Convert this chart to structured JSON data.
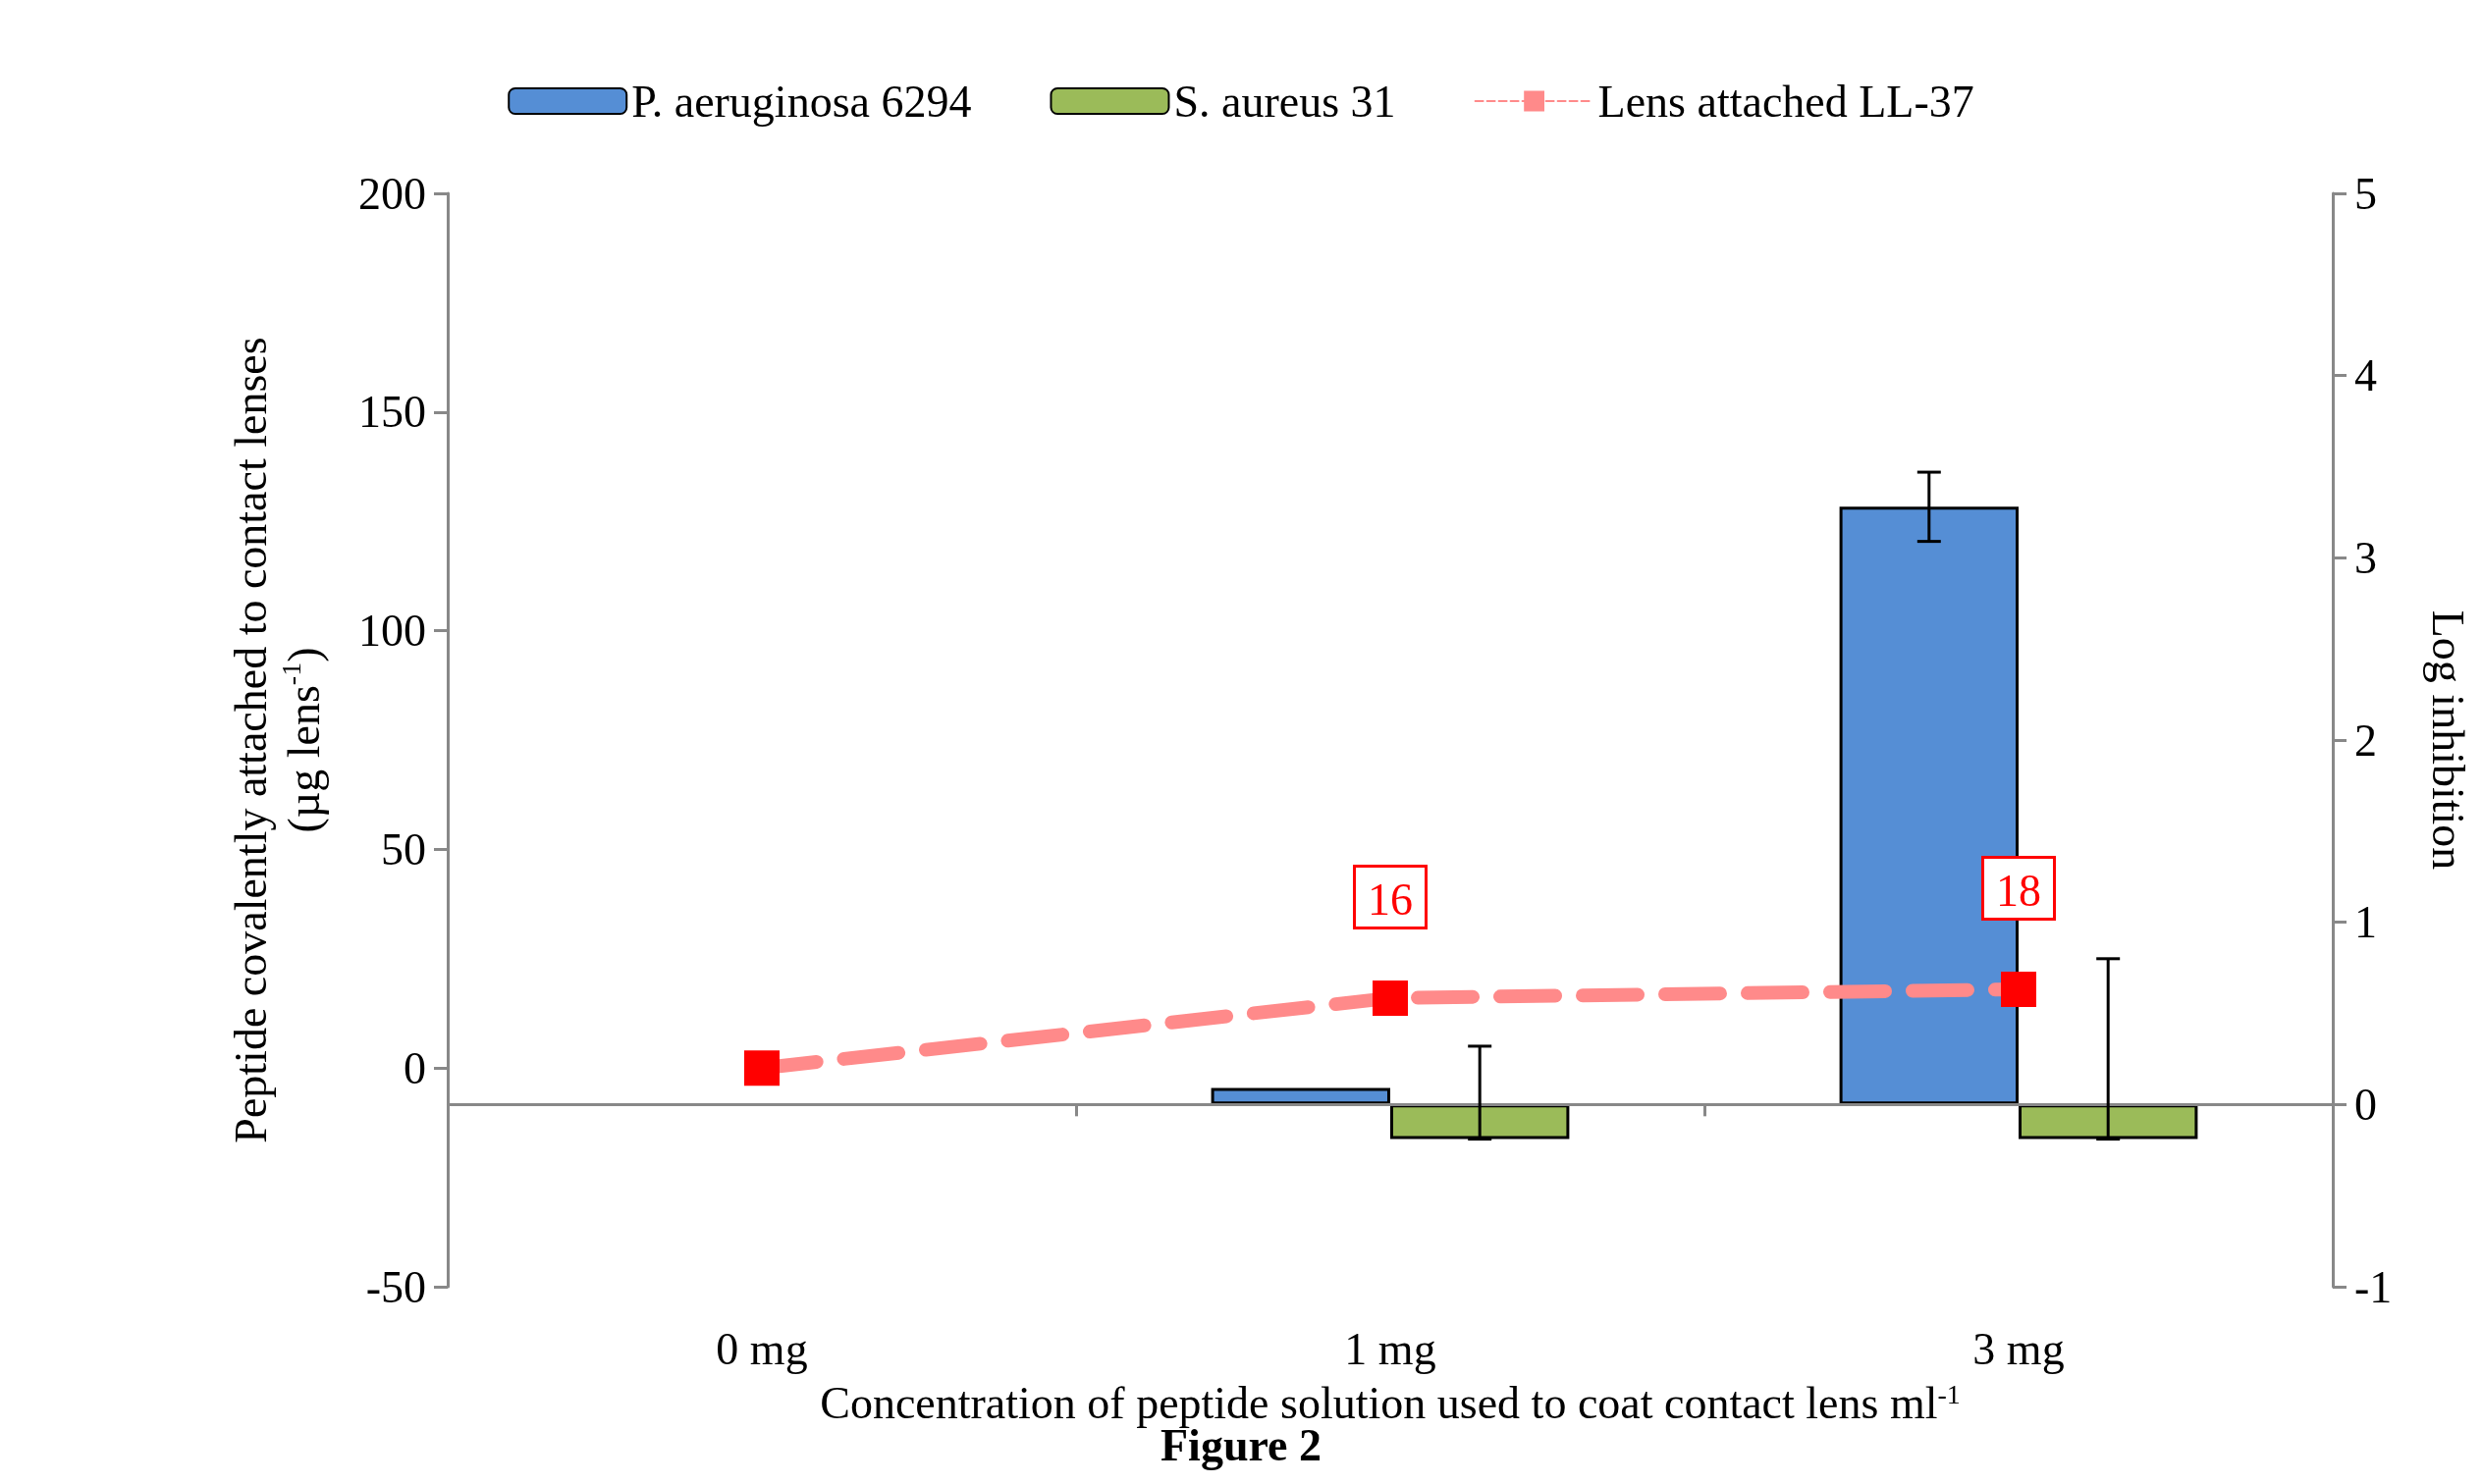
{
  "chart_data": {
    "type": "bar",
    "xlabel": "Concentration of peptide solution used to coat contact lens ml$^{-1}$",
    "ylabel": "Peptide covalently attached to contact lenses\n(µg lens$^{-1}$)",
    "y2label": "Log inhibition",
    "annotations": [
      "Figure 2"
    ],
    "categories": [
      "0 mg",
      "1 mg",
      "3 mg"
    ],
    "series": [
      {
        "name": "P. aeruginosa 6294",
        "axis": "y2",
        "color": "#558ed5",
        "values": [
          0,
          0.09,
          3.28
        ],
        "errors": [
          null,
          null,
          0.19
        ]
      },
      {
        "name": "S. aureus 31",
        "axis": "y2",
        "color": "#9bbb59",
        "values": [
          0,
          -0.19,
          -0.19
        ],
        "errors": [
          null,
          [
            -0.19,
            0.32
          ],
          [
            -0.19,
            0.8
          ]
        ]
      },
      {
        "name": "Lens attached LL-37",
        "type": "line",
        "axis": "y",
        "color": "#ff8a8a",
        "colors": [
          "#ff0000",
          "#ff0000",
          "#ff0000"
        ],
        "marker": "square",
        "line_style": "dashed",
        "values": [
          0,
          16,
          18
        ],
        "value_labels": [
          null,
          "16",
          "18"
        ]
      }
    ],
    "ylim": [
      -50,
      200
    ],
    "yticks": [
      -50,
      0,
      50,
      100,
      150,
      200
    ],
    "y2lim": [
      -1,
      5
    ],
    "y2ticks": [
      -1,
      0,
      1,
      2,
      3,
      4,
      5
    ],
    "ref_lines": [
      {
        "axis": "y2",
        "value": 0,
        "color": "#888888"
      }
    ],
    "grid": false,
    "legend": "top"
  }
}
